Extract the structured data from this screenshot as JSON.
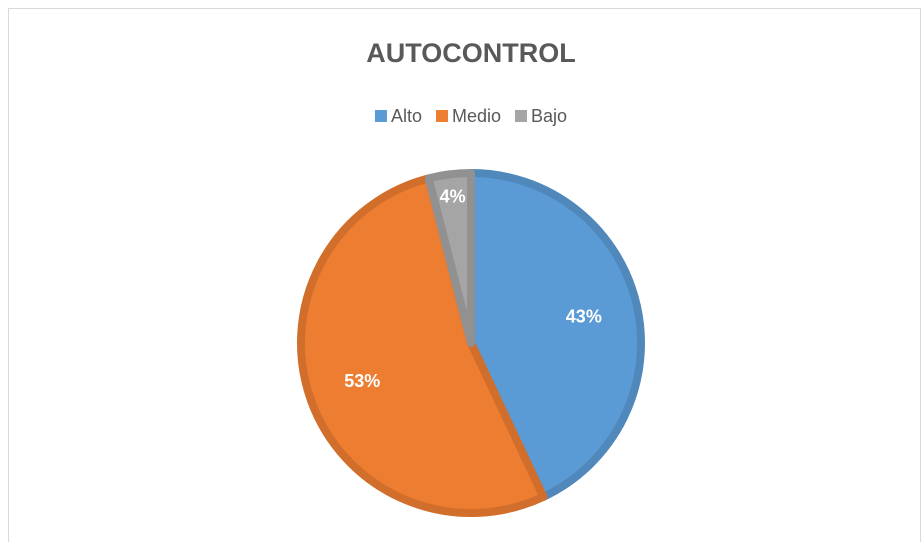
{
  "chart_data": {
    "type": "pie",
    "title": "AUTOCONTROL",
    "categories": [
      "Alto",
      "Medio",
      "Bajo"
    ],
    "values": [
      43,
      53,
      4
    ],
    "value_labels": [
      "43%",
      "53%",
      "4%"
    ],
    "colors": [
      "#5b9bd5",
      "#ed7d31",
      "#a5a5a5"
    ],
    "legend": "top"
  }
}
